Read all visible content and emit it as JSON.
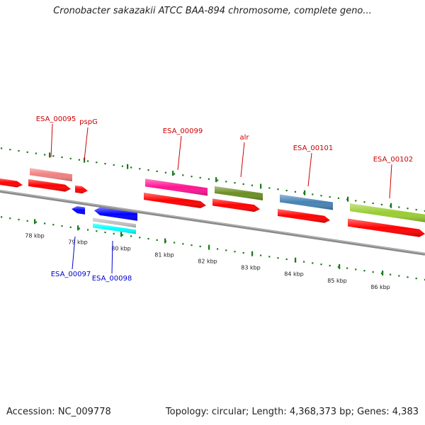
{
  "title": "Cronobacter sakazakii ATCC BAA-894 chromosome, complete geno...",
  "footer": {
    "accession": "Accession: NC_009778",
    "summary": "Topology: circular; Length: 4,368,373 bp; Genes: 4,383"
  },
  "colors": {
    "top_label": "#cc0000",
    "bottom_label": "#0000cc",
    "backbone": "#8a8a8a",
    "tick": "#1a7a1a",
    "cds": "#ff0000",
    "cds_minus": "#0000ff"
  },
  "scale": {
    "ticks": [
      "78 kbp",
      "79 kbp",
      "80 kbp",
      "81 kbp",
      "82 kbp",
      "83 kbp",
      "84 kbp",
      "85 kbp",
      "86 kbp"
    ]
  },
  "genes_top": [
    {
      "label": "ESA_00095",
      "color": "#f08080"
    },
    {
      "label": "pspG",
      "color": "#ff0000"
    },
    {
      "label": "ESA_00099",
      "color": "#ff1493"
    },
    {
      "label": "alr",
      "color": "#6b8e23"
    },
    {
      "label": "ESA_00101",
      "color": "#4682b4"
    },
    {
      "label": "ESA_00102",
      "color": "#9acd32"
    }
  ],
  "genes_bottom": [
    {
      "label": "ESA_00097",
      "color": "#0000ff"
    },
    {
      "label": "ESA_00098",
      "color": "#00ffff"
    }
  ]
}
